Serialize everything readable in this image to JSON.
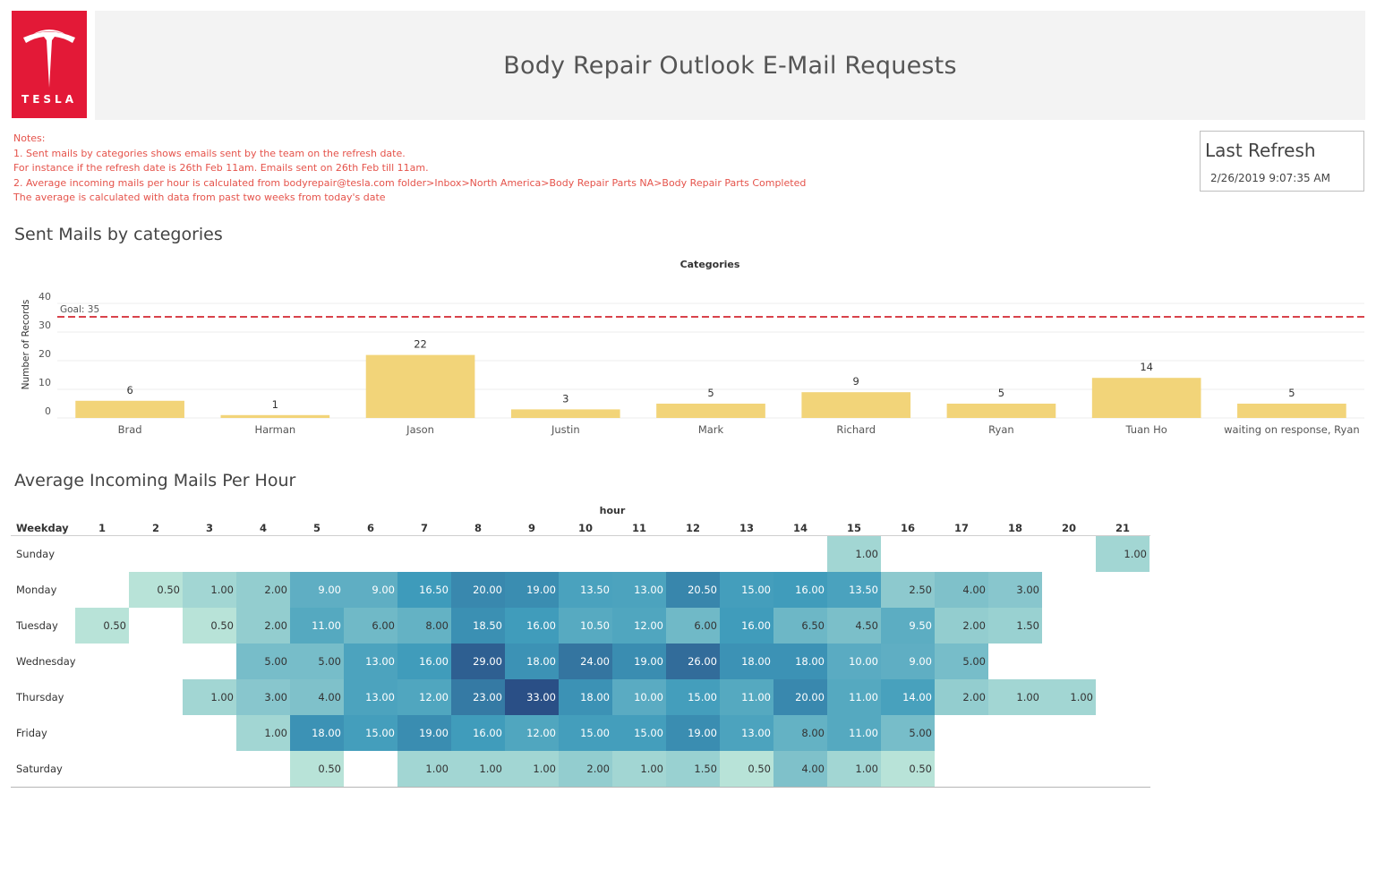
{
  "header": {
    "logo_text": "TESLA",
    "title": "Body Repair Outlook E-Mail Requests",
    "brand_color": "#e31937"
  },
  "notes": {
    "lines": [
      "Notes:",
      "1. Sent mails by categories shows emails sent by the team on the refresh date.",
      "For instance if the refresh date is 26th Feb 11am. Emails sent on 26th Feb till 11am.",
      "2. Average incoming mails per hour is calculated from bodyrepair@tesla.com folder>Inbox>North America>Body Repair Parts NA>Body Repair Parts Completed",
      "The average is calculated with data from past two weeks from today's date"
    ],
    "color": "#e5534b"
  },
  "last_refresh": {
    "title": "Last Refresh",
    "value": "2/26/2019 9:07:35 AM"
  },
  "sections": {
    "sent_mails_title": "Sent Mails by categories",
    "incoming_title": "Average Incoming Mails Per Hour"
  },
  "chart_data": [
    {
      "type": "bar",
      "column_header": "Categories",
      "ylabel": "Number of Records",
      "categories": [
        "Brad",
        "Harman",
        "Jason",
        "Justin",
        "Mark",
        "Richard",
        "Ryan",
        "Tuan Ho",
        "waiting on response, Ryan"
      ],
      "values": [
        6,
        1,
        22,
        3,
        5,
        9,
        5,
        14,
        5
      ],
      "yticks": [
        0,
        10,
        20,
        30,
        40
      ],
      "ylim": [
        0,
        40
      ],
      "reference_line": {
        "label": "Goal: 35",
        "value": 35,
        "color": "#d9434b"
      },
      "bar_color": "#f2d479"
    },
    {
      "type": "heatmap",
      "column_header": "hour",
      "row_header": "Weekday",
      "hours": [
        "1",
        "2",
        "3",
        "4",
        "5",
        "6",
        "7",
        "8",
        "9",
        "10",
        "11",
        "12",
        "13",
        "14",
        "15",
        "16",
        "17",
        "18",
        "20",
        "21"
      ],
      "rows": [
        {
          "day": "Sunday",
          "values": [
            null,
            null,
            null,
            null,
            null,
            null,
            null,
            null,
            null,
            null,
            null,
            null,
            null,
            null,
            1.0,
            null,
            null,
            null,
            null,
            1.0
          ]
        },
        {
          "day": "Monday",
          "values": [
            null,
            0.5,
            1.0,
            2.0,
            9.0,
            9.0,
            16.5,
            20.0,
            19.0,
            13.5,
            13.0,
            20.5,
            15.0,
            16.0,
            13.5,
            2.5,
            4.0,
            3.0,
            null,
            null
          ]
        },
        {
          "day": "Tuesday",
          "values": [
            0.5,
            null,
            0.5,
            2.0,
            11.0,
            6.0,
            8.0,
            18.5,
            16.0,
            10.5,
            12.0,
            6.0,
            16.0,
            6.5,
            4.5,
            9.5,
            2.0,
            1.5,
            null,
            null
          ]
        },
        {
          "day": "Wednesday",
          "values": [
            null,
            null,
            null,
            5.0,
            5.0,
            13.0,
            16.0,
            29.0,
            18.0,
            24.0,
            19.0,
            26.0,
            18.0,
            18.0,
            10.0,
            9.0,
            5.0,
            null,
            null,
            null
          ]
        },
        {
          "day": "Thursday",
          "values": [
            null,
            null,
            1.0,
            3.0,
            4.0,
            13.0,
            12.0,
            23.0,
            33.0,
            18.0,
            10.0,
            15.0,
            11.0,
            20.0,
            11.0,
            14.0,
            2.0,
            1.0,
            1.0,
            null
          ]
        },
        {
          "day": "Friday",
          "values": [
            null,
            null,
            null,
            1.0,
            18.0,
            15.0,
            19.0,
            16.0,
            12.0,
            15.0,
            15.0,
            19.0,
            13.0,
            8.0,
            11.0,
            5.0,
            null,
            null,
            null,
            null
          ]
        },
        {
          "day": "Saturday",
          "values": [
            null,
            null,
            null,
            null,
            0.5,
            null,
            1.0,
            1.0,
            1.0,
            2.0,
            1.0,
            1.5,
            0.5,
            4.0,
            1.0,
            0.5,
            null,
            null,
            null,
            null
          ]
        }
      ],
      "color_low": "#b8e3d8",
      "color_high": "#2a4f86",
      "value_range": [
        0.5,
        33
      ]
    }
  ]
}
